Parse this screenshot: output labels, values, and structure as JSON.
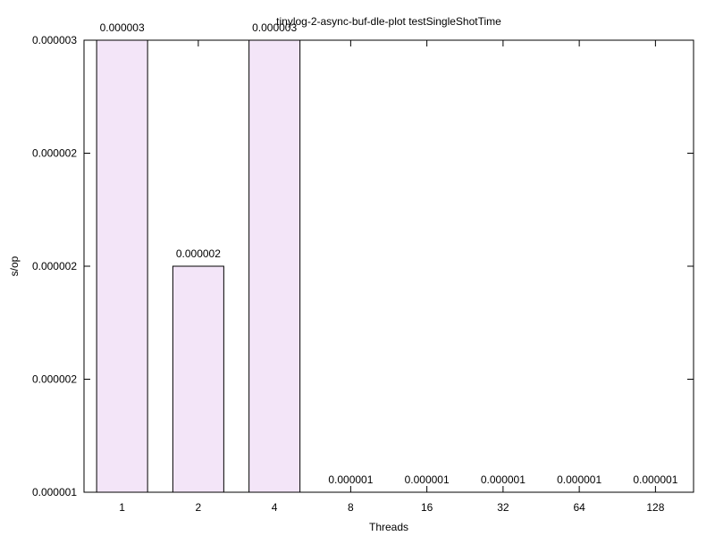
{
  "chart_data": {
    "type": "bar",
    "title": "tinylog-2-async-buf-dle-plot testSingleShotTime",
    "xlabel": "Threads",
    "ylabel": "s/op",
    "categories": [
      "1",
      "2",
      "4",
      "8",
      "16",
      "32",
      "64",
      "128"
    ],
    "values": [
      3e-06,
      2e-06,
      3e-06,
      1e-06,
      1e-06,
      1e-06,
      1e-06,
      1e-06
    ],
    "data_labels": [
      "0.000003",
      "0.000002",
      "0.000003",
      "0.000001",
      "0.000001",
      "0.000001",
      "0.000001",
      "0.000001"
    ],
    "bar_levels": [
      1.0,
      0.5,
      1.0,
      0.0,
      0.0,
      0.0,
      0.0,
      0.0
    ],
    "y_tick_labels": [
      "0.000001",
      "0.000002",
      "0.000002",
      "0.000002",
      "0.000003"
    ],
    "grid": false,
    "bar_fill": "#f3e5f8",
    "bar_stroke": "#000000"
  }
}
